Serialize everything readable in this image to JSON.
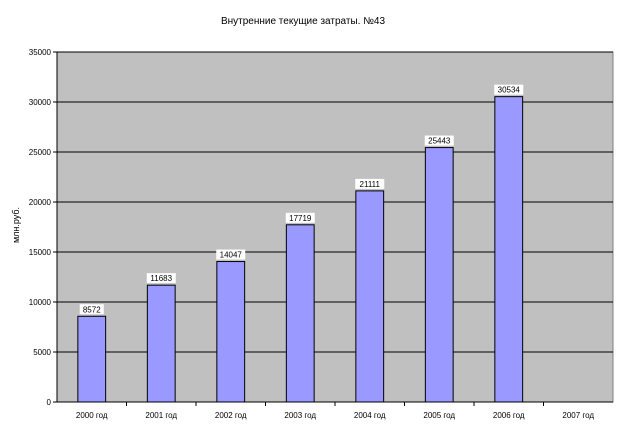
{
  "chart_data": {
    "type": "bar",
    "title": "Внутренние текущие затраты. №43",
    "ylabel": "млн.руб.",
    "xlabel": "",
    "categories": [
      "2000 год",
      "2001 год",
      "2002 год",
      "2003 год",
      "2004 год",
      "2005 год",
      "2006 год",
      "2007 год"
    ],
    "values": [
      8572,
      11683,
      14047,
      17719,
      21111,
      25443,
      30534,
      null
    ],
    "data_labels": [
      "8572",
      "11683",
      "14047",
      "17719",
      "21111",
      "25443",
      "30534",
      ""
    ],
    "ylim": [
      0,
      35000
    ],
    "yticks": [
      0,
      5000,
      10000,
      15000,
      20000,
      25000,
      30000,
      35000
    ],
    "ytick_labels": [
      "0",
      "5000",
      "10000",
      "15000",
      "20000",
      "25000",
      "30000",
      "35000"
    ],
    "grid": true,
    "legend": "none",
    "colors": {
      "bar_fill": "#9999ff",
      "bar_stroke": "#000000",
      "plot_background": "#c0c0c0",
      "gridline": "#000000"
    }
  }
}
